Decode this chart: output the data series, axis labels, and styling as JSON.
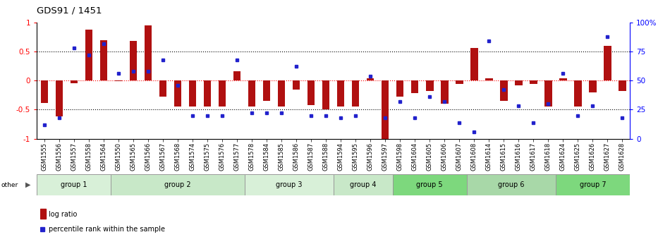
{
  "title": "GDS91 / 1451",
  "samples": [
    "GSM1555",
    "GSM1556",
    "GSM1557",
    "GSM1558",
    "GSM1564",
    "GSM1550",
    "GSM1565",
    "GSM1566",
    "GSM1567",
    "GSM1568",
    "GSM1574",
    "GSM1575",
    "GSM1576",
    "GSM1577",
    "GSM1578",
    "GSM1584",
    "GSM1585",
    "GSM1586",
    "GSM1587",
    "GSM1588",
    "GSM1594",
    "GSM1595",
    "GSM1596",
    "GSM1597",
    "GSM1598",
    "GSM1604",
    "GSM1605",
    "GSM1606",
    "GSM1607",
    "GSM1608",
    "GSM1614",
    "GSM1615",
    "GSM1616",
    "GSM1617",
    "GSM1618",
    "GSM1624",
    "GSM1625",
    "GSM1626",
    "GSM1627",
    "GSM1628"
  ],
  "log_ratio": [
    -0.38,
    -0.62,
    -0.05,
    0.88,
    0.7,
    -0.01,
    0.68,
    0.95,
    -0.28,
    -0.45,
    -0.45,
    -0.45,
    -0.45,
    0.16,
    -0.45,
    -0.35,
    -0.45,
    -0.15,
    -0.42,
    -0.5,
    -0.45,
    -0.45,
    0.04,
    -1.0,
    -0.28,
    -0.22,
    -0.18,
    -0.4,
    -0.06,
    0.56,
    0.04,
    -0.35,
    -0.08,
    -0.06,
    -0.45,
    0.04,
    -0.45,
    -0.2,
    0.6,
    -0.18
  ],
  "percentile": [
    12,
    18,
    78,
    72,
    82,
    56,
    58,
    58,
    68,
    46,
    20,
    20,
    20,
    68,
    22,
    22,
    22,
    62,
    20,
    20,
    18,
    20,
    54,
    18,
    32,
    18,
    36,
    32,
    14,
    6,
    84,
    42,
    28,
    14,
    30,
    56,
    20,
    28,
    88,
    18
  ],
  "groups": [
    {
      "name": "group 1",
      "start": 0,
      "end": 4,
      "color": "#d8f0d8"
    },
    {
      "name": "group 2",
      "start": 5,
      "end": 13,
      "color": "#c8e8c8"
    },
    {
      "name": "group 3",
      "start": 14,
      "end": 19,
      "color": "#d8f0d8"
    },
    {
      "name": "group 4",
      "start": 20,
      "end": 23,
      "color": "#c8e8c8"
    },
    {
      "name": "group 5",
      "start": 24,
      "end": 28,
      "color": "#7dd87d"
    },
    {
      "name": "group 6",
      "start": 29,
      "end": 34,
      "color": "#a8d8a8"
    },
    {
      "name": "group 7",
      "start": 35,
      "end": 39,
      "color": "#7dd87d"
    }
  ],
  "bar_color": "#b01010",
  "dot_color": "#2222cc",
  "ylim": [
    -1.0,
    1.0
  ],
  "yticks_left": [
    -1,
    -0.5,
    0,
    0.5,
    1
  ],
  "yticks_right": [
    0,
    25,
    50,
    75,
    100
  ],
  "yticks_right_labels": [
    "0",
    "25",
    "50",
    "75",
    "100%"
  ],
  "background_color": "#ffffff"
}
